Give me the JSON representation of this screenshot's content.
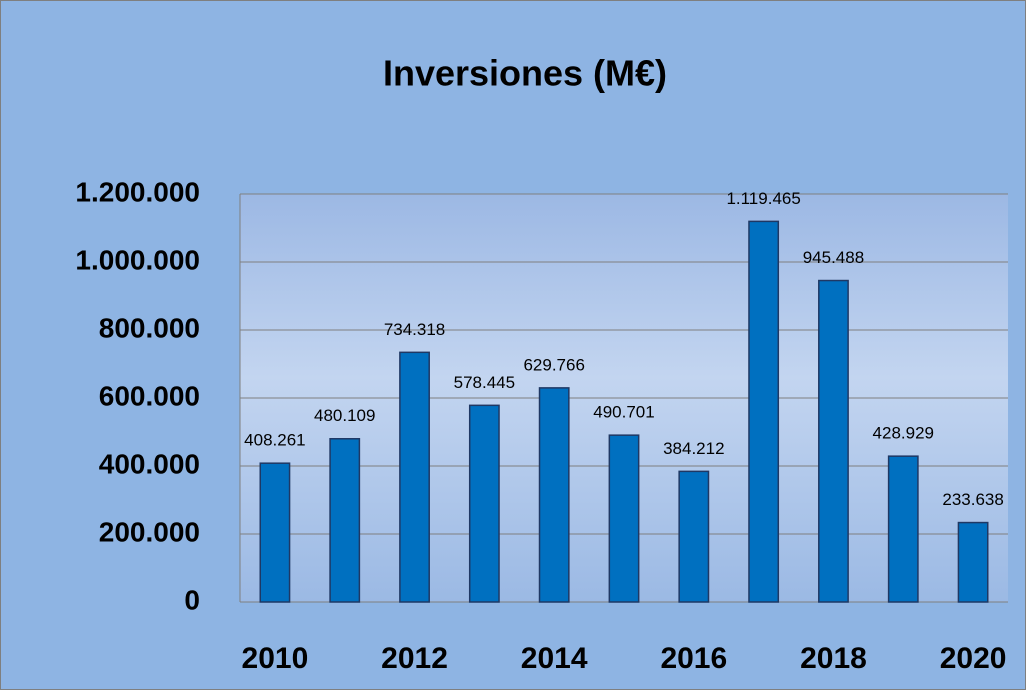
{
  "chart_data": {
    "type": "bar",
    "title": "Inversiones (M€)",
    "categories": [
      "2010",
      null,
      "2012",
      null,
      "2014",
      null,
      "2016",
      null,
      "2018",
      null,
      "2020"
    ],
    "values": [
      408261,
      480109,
      734318,
      578445,
      629766,
      490701,
      384212,
      1119465,
      945488,
      428929,
      233638
    ],
    "value_labels": [
      "408.261",
      "480.109",
      "734.318",
      "578.445",
      "629.766",
      "490.701",
      "384.212",
      "1.119.465",
      "945.488",
      "428.929",
      "233.638"
    ],
    "color": "#0070c0",
    "ylim": [
      0,
      1200000
    ],
    "yticks": [
      0,
      {
        "value": 200000,
        "label": "200.000"
      },
      {
        "value": 400000,
        "label": "400.000"
      },
      {
        "value": 600000,
        "label": "600.000"
      },
      {
        "value": 800000,
        "label": "800.000"
      },
      {
        "value": 1000000,
        "label": "1.000.000"
      },
      {
        "value": 1200000,
        "label": "1.200.000"
      }
    ],
    "grid": true
  }
}
